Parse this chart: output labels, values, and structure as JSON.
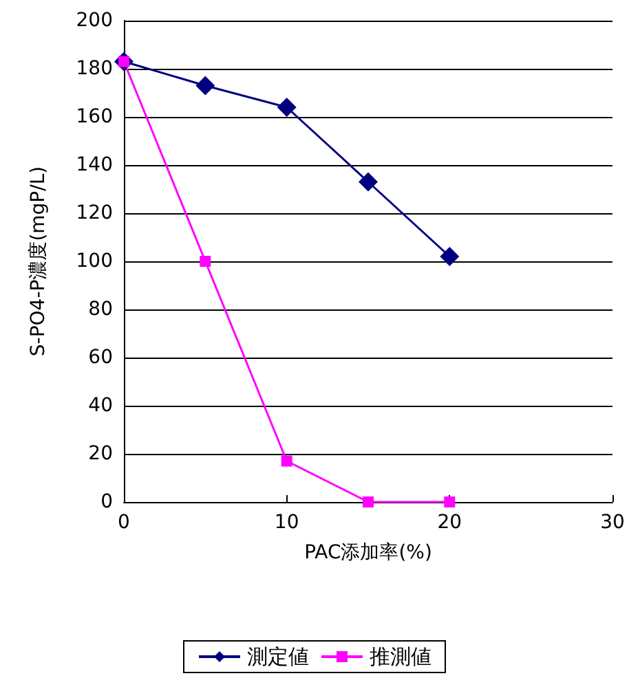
{
  "chart_data": {
    "type": "line",
    "xlabel": "PAC添加率(%)",
    "ylabel": "S-PO4-P濃度(mgP/L)",
    "x": [
      0,
      5,
      10,
      15,
      20
    ],
    "series": [
      {
        "name": "測定値",
        "color": "#000080",
        "marker": "diamond",
        "values": [
          183,
          173,
          164,
          133,
          102
        ]
      },
      {
        "name": "推測値",
        "color": "#ff00ff",
        "marker": "square",
        "values": [
          183,
          100,
          17,
          0,
          0
        ]
      }
    ],
    "xlim": [
      0,
      30
    ],
    "xticks": [
      0,
      10,
      20,
      30
    ],
    "ylim": [
      0,
      200
    ],
    "yticks": [
      0,
      20,
      40,
      60,
      80,
      100,
      120,
      140,
      160,
      180,
      200
    ],
    "grid": "y",
    "legend": "bottom",
    "line_style": "solid"
  }
}
